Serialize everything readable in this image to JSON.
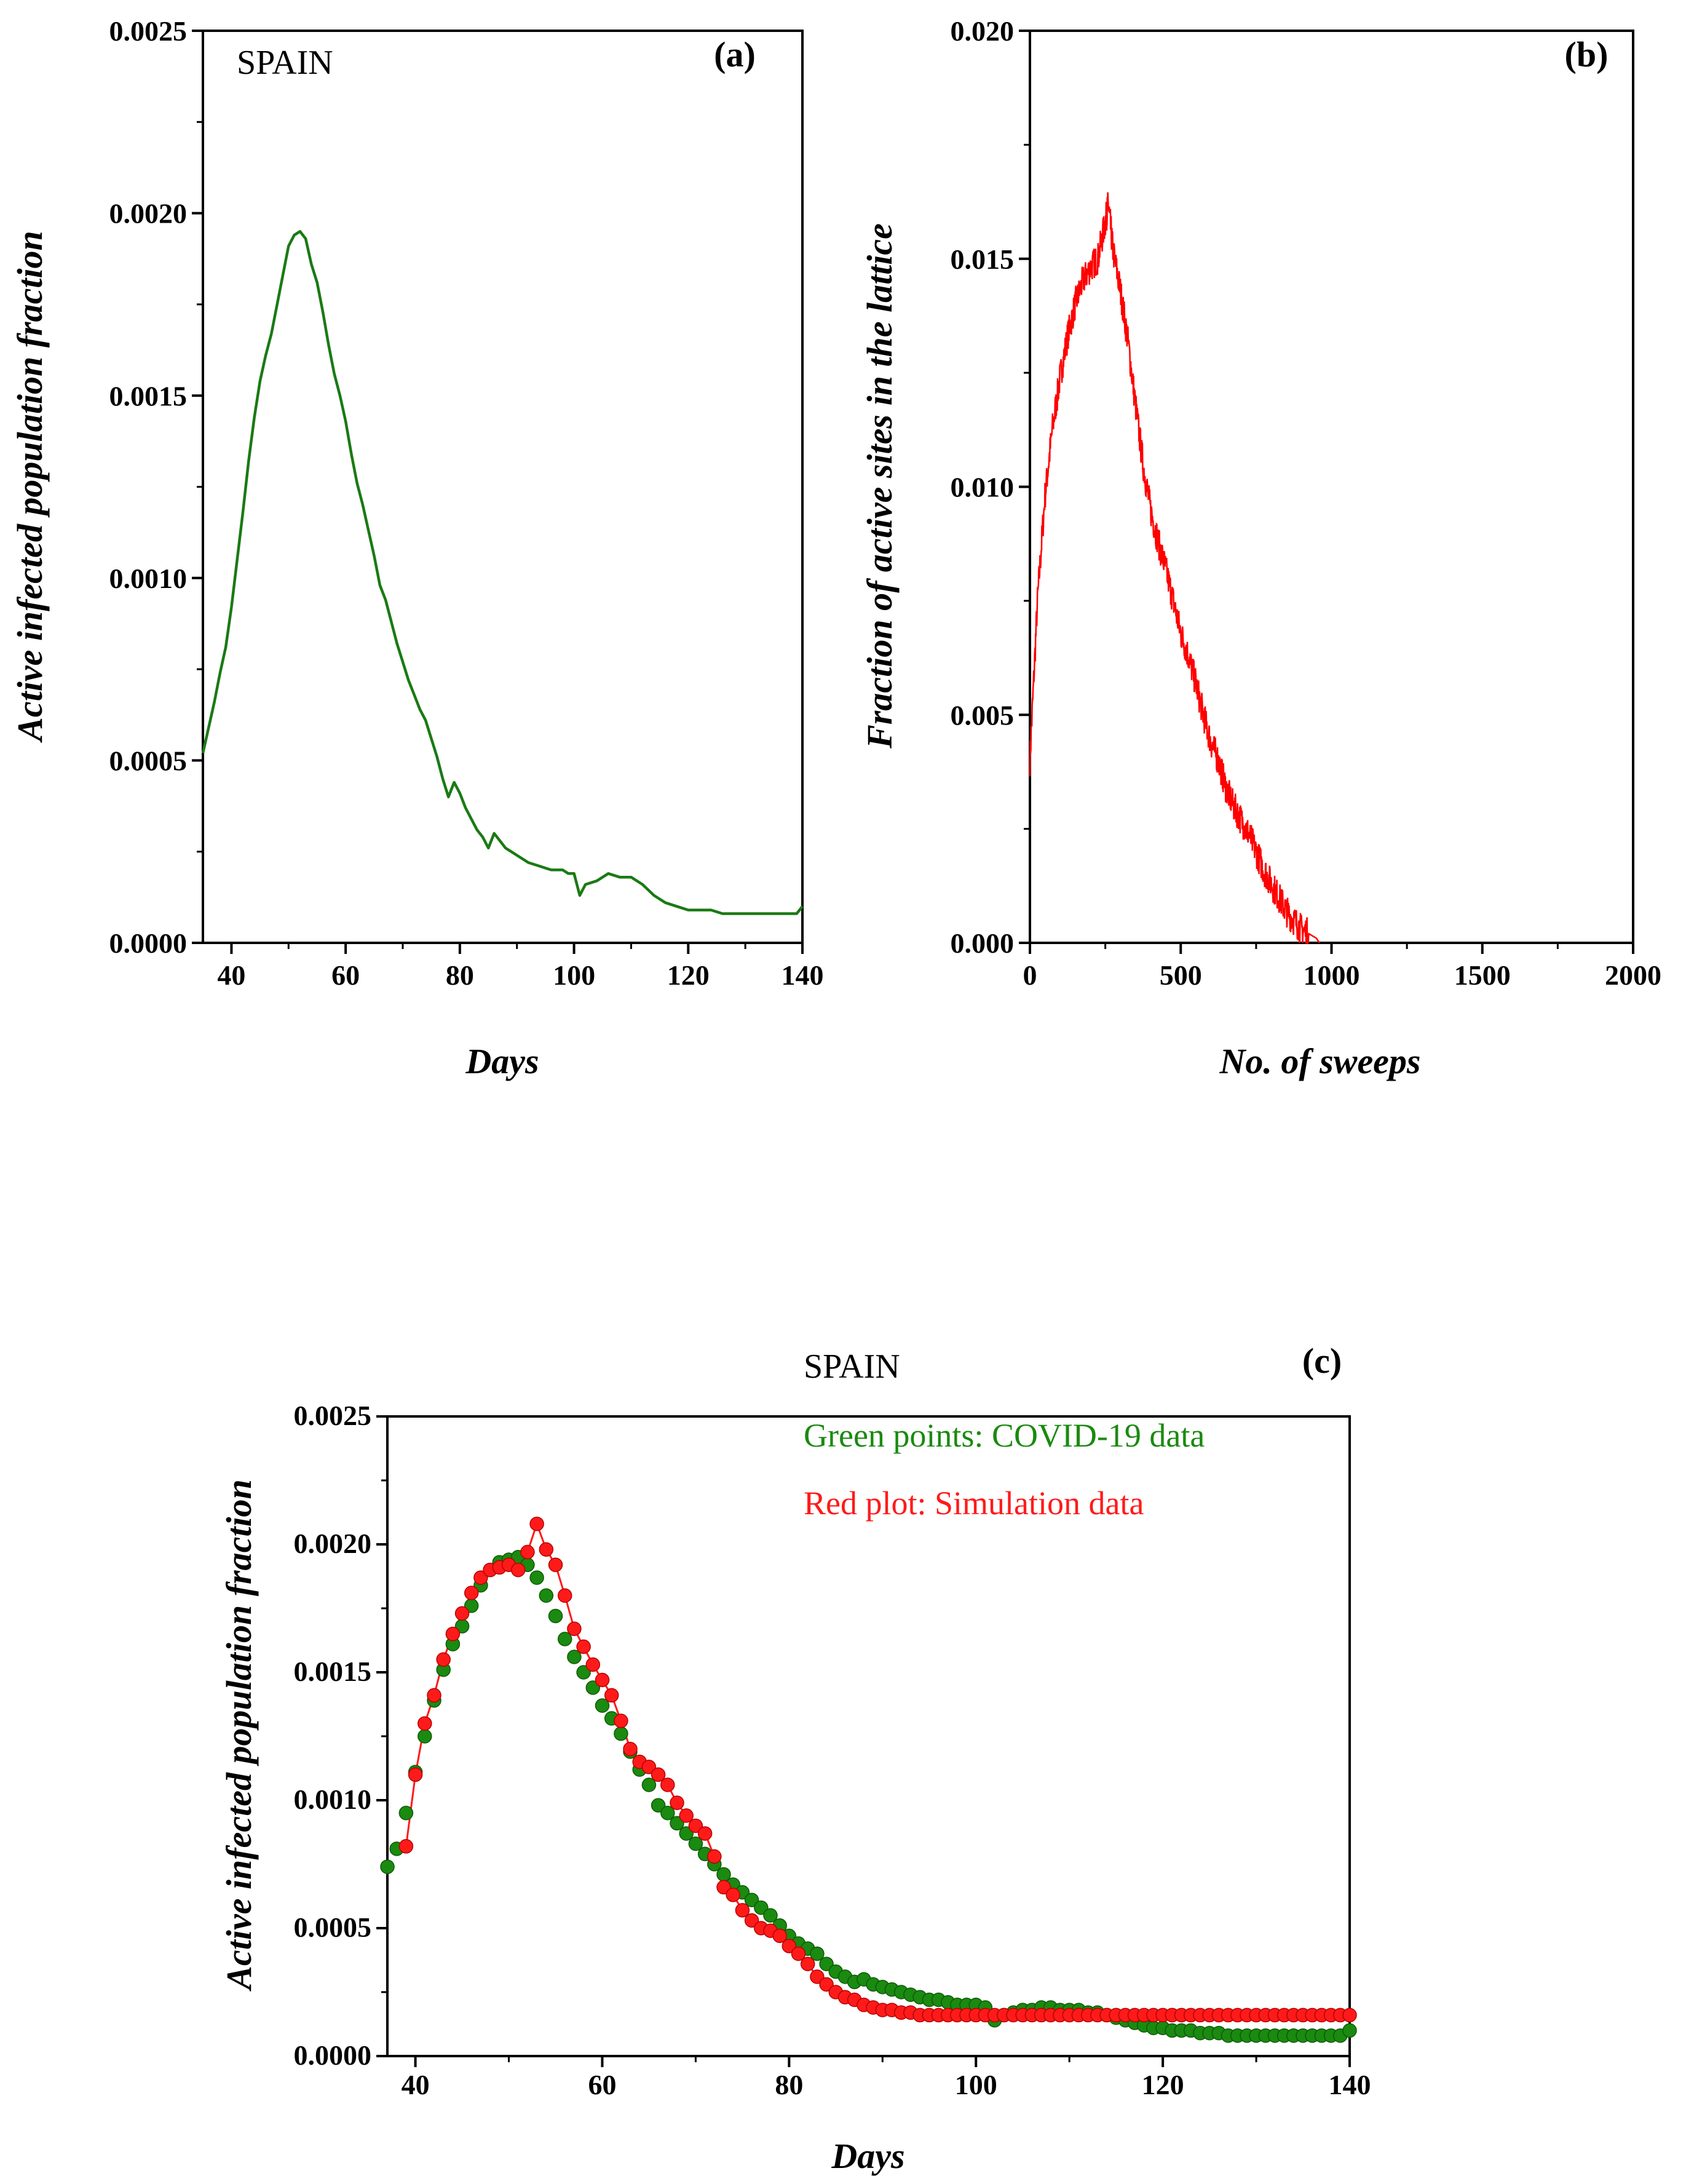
{
  "chart_data": [
    {
      "id": "a",
      "type": "line",
      "panel_label": "(a)",
      "annotation": "SPAIN",
      "xlabel": "Days",
      "ylabel": "Active infected population fraction",
      "xlim": [
        35,
        140
      ],
      "ylim": [
        0,
        0.0025
      ],
      "xticks": [
        "40",
        "60",
        "80",
        "100",
        "120",
        "140"
      ],
      "yticks": [
        "0.0000",
        "0.0005",
        "0.0010",
        "0.0015",
        "0.0020",
        "0.0025"
      ],
      "line_color": "#1a7a14",
      "series": [
        {
          "x": [
            35,
            36,
            37,
            38,
            39,
            40,
            41,
            42,
            43,
            44,
            45,
            46,
            47,
            48,
            49,
            50,
            51,
            52,
            53,
            54,
            55,
            56,
            57,
            58,
            59,
            60,
            61,
            62,
            63,
            64,
            65,
            66,
            67,
            68,
            69,
            70,
            71,
            72,
            73,
            74,
            75,
            76,
            77,
            78,
            79,
            80,
            81,
            82,
            83,
            84,
            85,
            86,
            87,
            88,
            89,
            90,
            92,
            94,
            96,
            98,
            99,
            100,
            101,
            102,
            104,
            106,
            108,
            110,
            112,
            114,
            116,
            118,
            120,
            122,
            124,
            126,
            128,
            130,
            132,
            134,
            136,
            138,
            139,
            140
          ],
          "y": [
            0.00052,
            0.00059,
            0.00066,
            0.00074,
            0.00081,
            0.00092,
            0.00105,
            0.00118,
            0.00132,
            0.00144,
            0.00154,
            0.00161,
            0.00167,
            0.00175,
            0.00183,
            0.00191,
            0.00194,
            0.00195,
            0.00193,
            0.00186,
            0.00181,
            0.00173,
            0.00164,
            0.00156,
            0.0015,
            0.00143,
            0.00134,
            0.00126,
            0.0012,
            0.00113,
            0.00106,
            0.00098,
            0.00094,
            0.00088,
            0.00082,
            0.00077,
            0.00072,
            0.00068,
            0.00064,
            0.00061,
            0.00056,
            0.00051,
            0.00045,
            0.0004,
            0.00044,
            0.00041,
            0.00037,
            0.00034,
            0.00031,
            0.00029,
            0.00026,
            0.0003,
            0.00028,
            0.00026,
            0.00025,
            0.00024,
            0.00022,
            0.00021,
            0.0002,
            0.0002,
            0.00019,
            0.00019,
            0.00013,
            0.00016,
            0.00017,
            0.00019,
            0.00018,
            0.00018,
            0.00016,
            0.00013,
            0.00011,
            0.0001,
            9e-05,
            9e-05,
            9e-05,
            8e-05,
            8e-05,
            8e-05,
            8e-05,
            8e-05,
            8e-05,
            8e-05,
            8e-05,
            0.0001
          ]
        }
      ]
    },
    {
      "id": "b",
      "type": "line",
      "panel_label": "(b)",
      "xlabel": "No. of sweeps",
      "ylabel": "Fraction of active sites in the lattice",
      "xlim": [
        0,
        2000
      ],
      "ylim": [
        0,
        0.02
      ],
      "xticks": [
        "0",
        "500",
        "1000",
        "1500",
        "2000"
      ],
      "yticks": [
        "0.000",
        "0.005",
        "0.010",
        "0.015",
        "0.020"
      ],
      "line_color": "#ff0000",
      "series": [
        {
          "x": [
            0,
            25,
            50,
            75,
            100,
            125,
            150,
            175,
            200,
            225,
            250,
            260,
            275,
            300,
            325,
            350,
            375,
            400,
            425,
            450,
            475,
            500,
            525,
            550,
            575,
            600,
            625,
            650,
            675,
            700,
            725,
            750,
            775,
            800,
            825,
            850,
            875,
            900,
            925,
            950,
            960
          ],
          "y": [
            0.004,
            0.0075,
            0.0098,
            0.0113,
            0.0124,
            0.0133,
            0.014,
            0.0145,
            0.0148,
            0.015,
            0.0158,
            0.0162,
            0.0152,
            0.0143,
            0.0132,
            0.0118,
            0.0105,
            0.0095,
            0.0088,
            0.0082,
            0.0075,
            0.0068,
            0.0063,
            0.0057,
            0.005,
            0.0044,
            0.004,
            0.0034,
            0.003,
            0.0027,
            0.0024,
            0.002,
            0.0016,
            0.0013,
            0.001,
            0.0007,
            0.0005,
            0.0003,
            0.0002,
            0.0001,
            0.0
          ]
        }
      ]
    },
    {
      "id": "c",
      "type": "scatter",
      "panel_label": "(c)",
      "annotation": "SPAIN",
      "legend_text": [
        "Green points: COVID-19 data",
        "Red plot: Simulation data"
      ],
      "xlabel": "Days",
      "ylabel": "Active infected population fraction",
      "xlim": [
        37,
        140
      ],
      "ylim": [
        0,
        0.0025
      ],
      "xticks": [
        "40",
        "60",
        "80",
        "100",
        "120",
        "140"
      ],
      "yticks": [
        "0.0000",
        "0.0005",
        "0.0010",
        "0.0015",
        "0.0020",
        "0.0025"
      ],
      "colors": {
        "covid": "#1a8a10",
        "simulation": "#ff1a1a"
      },
      "series": [
        {
          "key": "covid",
          "x": [
            37,
            38,
            39,
            40,
            41,
            42,
            43,
            44,
            45,
            46,
            47,
            48,
            49,
            50,
            51,
            52,
            53,
            54,
            55,
            56,
            57,
            58,
            59,
            60,
            61,
            62,
            63,
            64,
            65,
            66,
            67,
            68,
            69,
            70,
            71,
            72,
            73,
            74,
            75,
            76,
            77,
            78,
            79,
            80,
            81,
            82,
            83,
            84,
            85,
            86,
            87,
            88,
            89,
            90,
            91,
            92,
            93,
            94,
            95,
            96,
            97,
            98,
            99,
            100,
            101,
            102,
            103,
            104,
            105,
            106,
            107,
            108,
            109,
            110,
            111,
            112,
            113,
            114,
            115,
            116,
            117,
            118,
            119,
            120,
            121,
            122,
            123,
            124,
            125,
            126,
            127,
            128,
            129,
            130,
            131,
            132,
            133,
            134,
            135,
            136,
            137,
            138,
            139,
            140
          ],
          "y": [
            0.00074,
            0.00081,
            0.00095,
            0.00111,
            0.00125,
            0.00139,
            0.00151,
            0.00161,
            0.00168,
            0.00176,
            0.00184,
            0.0019,
            0.00193,
            0.00194,
            0.00195,
            0.00192,
            0.00187,
            0.0018,
            0.00172,
            0.00163,
            0.00156,
            0.0015,
            0.00144,
            0.00137,
            0.00132,
            0.00126,
            0.00119,
            0.00112,
            0.00106,
            0.00098,
            0.00095,
            0.00091,
            0.00087,
            0.00083,
            0.00079,
            0.00075,
            0.00071,
            0.00067,
            0.00064,
            0.00061,
            0.00058,
            0.00055,
            0.00051,
            0.00047,
            0.00044,
            0.00042,
            0.0004,
            0.00036,
            0.00033,
            0.00031,
            0.00029,
            0.0003,
            0.00028,
            0.00027,
            0.00026,
            0.00025,
            0.00024,
            0.00023,
            0.00022,
            0.00022,
            0.00021,
            0.0002,
            0.0002,
            0.0002,
            0.00019,
            0.00014,
            0.00016,
            0.00017,
            0.00018,
            0.00018,
            0.00019,
            0.00019,
            0.00018,
            0.00018,
            0.00018,
            0.00017,
            0.00017,
            0.00016,
            0.00015,
            0.00014,
            0.00013,
            0.00012,
            0.00011,
            0.00011,
            0.0001,
            0.0001,
            0.0001,
            9e-05,
            9e-05,
            9e-05,
            8e-05,
            8e-05,
            8e-05,
            8e-05,
            8e-05,
            8e-05,
            8e-05,
            8e-05,
            8e-05,
            8e-05,
            8e-05,
            8e-05,
            8e-05,
            0.0001
          ]
        },
        {
          "key": "simulation",
          "x": [
            39,
            40,
            41,
            42,
            43,
            44,
            45,
            46,
            47,
            48,
            49,
            50,
            51,
            52,
            53,
            54,
            55,
            56,
            57,
            58,
            59,
            60,
            61,
            62,
            63,
            64,
            65,
            66,
            67,
            68,
            69,
            70,
            71,
            72,
            73,
            74,
            75,
            76,
            77,
            78,
            79,
            80,
            81,
            82,
            83,
            84,
            85,
            86,
            87,
            88,
            89,
            90,
            91,
            92,
            93,
            94,
            95,
            96,
            97,
            98,
            99,
            100,
            101,
            102,
            103,
            104,
            105,
            106,
            107,
            108,
            109,
            110,
            111,
            112,
            113,
            114,
            115,
            116,
            117,
            118,
            119,
            120,
            121,
            122,
            123,
            124,
            125,
            126,
            127,
            128,
            129,
            130,
            131,
            132,
            133,
            134,
            135,
            136,
            137,
            138,
            139,
            140
          ],
          "y": [
            0.00082,
            0.0011,
            0.0013,
            0.00141,
            0.00155,
            0.00165,
            0.00173,
            0.00181,
            0.00187,
            0.0019,
            0.00191,
            0.00192,
            0.0019,
            0.00197,
            0.00208,
            0.00198,
            0.00192,
            0.0018,
            0.00167,
            0.0016,
            0.00153,
            0.00147,
            0.00141,
            0.00131,
            0.0012,
            0.00115,
            0.00113,
            0.0011,
            0.00106,
            0.00099,
            0.00094,
            0.0009,
            0.00087,
            0.00078,
            0.00066,
            0.00063,
            0.00057,
            0.00053,
            0.0005,
            0.00049,
            0.00047,
            0.00043,
            0.0004,
            0.00036,
            0.00031,
            0.00028,
            0.00025,
            0.00023,
            0.00022,
            0.0002,
            0.00019,
            0.00018,
            0.00018,
            0.00017,
            0.00017,
            0.00016,
            0.00016,
            0.00016,
            0.00016,
            0.00016,
            0.00016,
            0.00016,
            0.00016,
            0.00016,
            0.00016,
            0.00016,
            0.00016,
            0.00016,
            0.00016,
            0.00016,
            0.00016,
            0.00016,
            0.00016,
            0.00016,
            0.00016,
            0.00016,
            0.00016,
            0.00016,
            0.00016,
            0.00016,
            0.00016,
            0.00016,
            0.00016,
            0.00016,
            0.00016,
            0.00016,
            0.00016,
            0.00016,
            0.00016,
            0.00016,
            0.00016,
            0.00016,
            0.00016,
            0.00016,
            0.00016,
            0.00016,
            0.00016,
            0.00016,
            0.00016,
            0.00016,
            0.00016,
            0.00016
          ]
        }
      ]
    }
  ]
}
